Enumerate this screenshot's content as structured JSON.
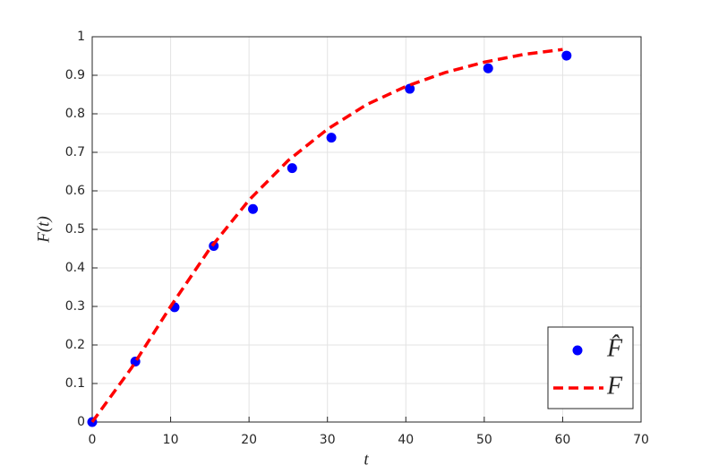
{
  "chart_data": {
    "type": "scatter-line",
    "x_label": "t",
    "y_label": "F(t)",
    "xlim": [
      0,
      70
    ],
    "ylim": [
      0,
      1
    ],
    "xticks": [
      0,
      10,
      20,
      30,
      40,
      50,
      60,
      70
    ],
    "yticks": [
      0,
      0.1,
      0.2,
      0.3,
      0.4,
      0.5,
      0.6,
      0.7,
      0.8,
      0.9,
      1
    ],
    "grid": true,
    "legend": "lower right",
    "series": [
      {
        "name": "F̂",
        "kind": "scatter",
        "color": "#0000ff",
        "x": [
          0,
          5.5,
          10.5,
          15.5,
          20.5,
          25.5,
          30.5,
          40.5,
          50.5,
          60.5
        ],
        "values": [
          0,
          0.157,
          0.298,
          0.457,
          0.553,
          0.659,
          0.738,
          0.865,
          0.918,
          0.951
        ]
      },
      {
        "name": "F",
        "kind": "line",
        "color": "#ff0000",
        "x": [
          0,
          5,
          10,
          15,
          20,
          25,
          30,
          35,
          40,
          45,
          50,
          55,
          60
        ],
        "values": [
          0,
          0.14,
          0.3,
          0.45,
          0.576,
          0.679,
          0.76,
          0.824,
          0.871,
          0.907,
          0.934,
          0.954,
          0.967
        ]
      }
    ]
  }
}
